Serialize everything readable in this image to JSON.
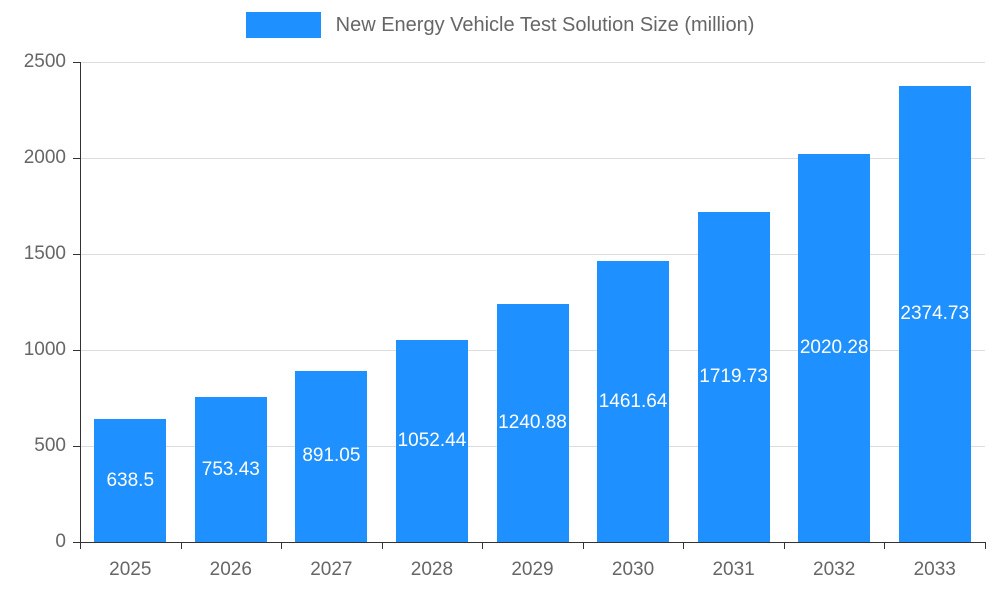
{
  "legend": {
    "label": "New Energy Vehicle Test Solution Size (million)"
  },
  "colors": {
    "bar": "#1e90ff",
    "grid": "#dddddd",
    "axis": "#333333",
    "tick_text": "#666666",
    "legend_text": "#666666",
    "value_label": "#ffffff",
    "background": "#ffffff"
  },
  "chart_data": {
    "type": "bar",
    "title": "New Energy Vehicle Test Solution Size (million)",
    "categories": [
      "2025",
      "2026",
      "2027",
      "2028",
      "2029",
      "2030",
      "2031",
      "2032",
      "2033"
    ],
    "values": [
      638.5,
      753.43,
      891.05,
      1052.44,
      1240.88,
      1461.64,
      1719.73,
      2020.28,
      2374.73
    ],
    "value_labels": [
      "638.5",
      "753.43",
      "891.05",
      "1052.44",
      "1240.88",
      "1461.64",
      "1719.73",
      "2020.28",
      "2374.73"
    ],
    "xlabel": "",
    "ylabel": "",
    "ylim": [
      0,
      2500
    ],
    "yticks": [
      0,
      500,
      1000,
      1500,
      2000,
      2500
    ],
    "grid": true,
    "legend_position": "top",
    "value_label_position": "inside-center"
  }
}
